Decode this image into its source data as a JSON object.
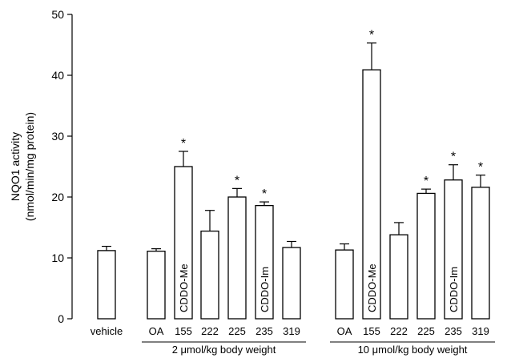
{
  "chart_data": {
    "type": "bar",
    "ylabel_line1": "NQO1 activity",
    "ylabel_line2": "(nmol/min/mg protein)",
    "ylim": [
      0,
      50
    ],
    "yticks": [
      0,
      10,
      20,
      30,
      40,
      50
    ],
    "grid": false,
    "groups": [
      "2 μmol/kg body weight",
      "10 μmol/kg body weight"
    ],
    "bars": [
      {
        "category": "vehicle",
        "group": "",
        "value": 11.2,
        "error": 0.7,
        "significant": false,
        "inner_label": ""
      },
      {
        "category": "OA",
        "group": "2 μmol/kg body weight",
        "value": 11.1,
        "error": 0.4,
        "significant": false,
        "inner_label": ""
      },
      {
        "category": "155",
        "group": "2 μmol/kg body weight",
        "value": 25.0,
        "error": 2.5,
        "significant": true,
        "inner_label": "CDDO-Me"
      },
      {
        "category": "222",
        "group": "2 μmol/kg body weight",
        "value": 14.4,
        "error": 3.4,
        "significant": false,
        "inner_label": ""
      },
      {
        "category": "225",
        "group": "2 μmol/kg body weight",
        "value": 20.0,
        "error": 1.4,
        "significant": true,
        "inner_label": ""
      },
      {
        "category": "235",
        "group": "2 μmol/kg body weight",
        "value": 18.6,
        "error": 0.6,
        "significant": true,
        "inner_label": "CDDO-Im"
      },
      {
        "category": "319",
        "group": "2 μmol/kg body weight",
        "value": 11.7,
        "error": 1.0,
        "significant": false,
        "inner_label": ""
      },
      {
        "category": "OA",
        "group": "10 μmol/kg body weight",
        "value": 11.3,
        "error": 1.0,
        "significant": false,
        "inner_label": ""
      },
      {
        "category": "155",
        "group": "10 μmol/kg body weight",
        "value": 40.9,
        "error": 4.4,
        "significant": true,
        "inner_label": "CDDO-Me"
      },
      {
        "category": "222",
        "group": "10 μmol/kg body weight",
        "value": 13.8,
        "error": 2.0,
        "significant": false,
        "inner_label": ""
      },
      {
        "category": "225",
        "group": "10 μmol/kg body weight",
        "value": 20.6,
        "error": 0.7,
        "significant": true,
        "inner_label": ""
      },
      {
        "category": "235",
        "group": "10 μmol/kg body weight",
        "value": 22.8,
        "error": 2.5,
        "significant": true,
        "inner_label": "CDDO-Im"
      },
      {
        "category": "319",
        "group": "10 μmol/kg body weight",
        "value": 21.6,
        "error": 2.0,
        "significant": true,
        "inner_label": ""
      }
    ],
    "significance_marker": "*"
  }
}
